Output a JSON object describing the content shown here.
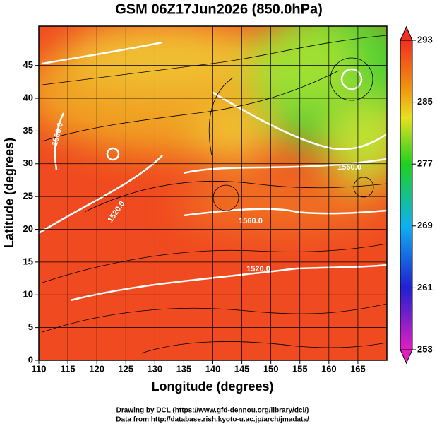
{
  "chart_data": {
    "type": "map",
    "title": "GSM 06Z17Jun2026 (850.0hPa)",
    "x_label": "Longitude (degrees)",
    "y_label": "Latitude  (degrees)",
    "xlim": [
      110,
      170
    ],
    "xticks": [
      110,
      115,
      120,
      125,
      130,
      135,
      140,
      145,
      150,
      155,
      160,
      165
    ],
    "ylim": [
      0,
      51
    ],
    "yticks": [
      0,
      5,
      10,
      15,
      20,
      25,
      30,
      35,
      40,
      45
    ],
    "grid": true,
    "colorbar": {
      "lim": [
        253,
        293
      ],
      "ticks": [
        253,
        261,
        269,
        277,
        285,
        293
      ]
    },
    "contour_labels": [
      "1560.0",
      "1560.0",
      "1520.0",
      "1520.0",
      "1560.0"
    ]
  },
  "footer": [
    "Drawing by DCL (https://www.gfd-dennou.org/library/dcl/)",
    "Data from http://database.rish.kyoto-u.ac.jp/arch/jmadata/"
  ]
}
